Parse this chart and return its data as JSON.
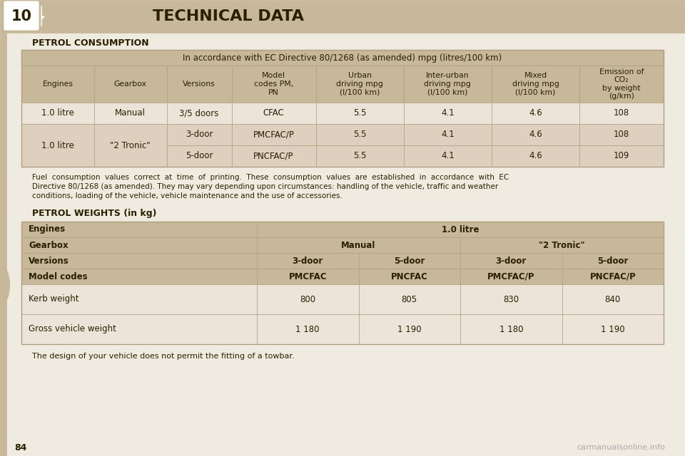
{
  "page_bg": "#f0ebe0",
  "header_bg": "#c8b89a",
  "header_number": "10",
  "header_title": "TECHNICAL DATA",
  "section1_title": "PETROL CONSUMPTION",
  "section2_title": "PETROL WEIGHTS (in kg)",
  "table1_header_text": "In accordance with EC Directive 80/1268 (as amended) mpg (litres/100 km)",
  "col_headers": [
    "Engines",
    "Gearbox",
    "Versions",
    "Model\ncodes PM,\nPN",
    "Urban\ndriving mpg\n(l/100 km)",
    "Inter-urban\ndriving mpg\n(l/100 km)",
    "Mixed\ndriving mpg\n(l/100 km)",
    "Emission of\nCO₂\nby weight\n(g/km)"
  ],
  "table1_data": [
    [
      "1.0 litre",
      "Manual",
      "3/5 doors",
      "CFAC",
      "5.5",
      "4.1",
      "4.6",
      "108"
    ],
    [
      "",
      "",
      "3-door",
      "PMCFAC/P",
      "5.5",
      "4.1",
      "4.6",
      "108"
    ],
    [
      "",
      "",
      "5-door",
      "PNCFAC/P",
      "5.5",
      "4.1",
      "4.6",
      "109"
    ]
  ],
  "merged_col0": "1.0 litre",
  "merged_col1": "\"2 Tronic\"",
  "footnote_lines": [
    "Fuel  consumption  values  correct  at  time  of  printing.  These  consumption  values  are  established  in  accordance  with  EC",
    "Directive 80/1268 (as amended). They may vary depending upon circumstances: handling of the vehicle, traffic and weather",
    "conditions, loading of the vehicle, vehicle maintenance and the use of accessories."
  ],
  "table2_row_labels": [
    "Engines",
    "Gearbox",
    "Versions",
    "Model codes",
    "Kerb weight",
    "Gross vehicle weight"
  ],
  "table2_header_flags": [
    true,
    true,
    true,
    true,
    false,
    false
  ],
  "table2_right": [
    [
      [
        "1.0 litre",
        4
      ]
    ],
    [
      [
        "Manual",
        2
      ],
      [
        "\"2 Tronic\"",
        2
      ]
    ],
    [
      [
        "3-door",
        1
      ],
      [
        "5-door",
        1
      ],
      [
        "3-door",
        1
      ],
      [
        "5-door",
        1
      ]
    ],
    [
      [
        "PMCFAC",
        1
      ],
      [
        "PNCFAC",
        1
      ],
      [
        "PMCFAC/P",
        1
      ],
      [
        "PNCFAC/P",
        1
      ]
    ],
    [
      [
        "800",
        1
      ],
      [
        "805",
        1
      ],
      [
        "830",
        1
      ],
      [
        "840",
        1
      ]
    ],
    [
      [
        "1 180",
        1
      ],
      [
        "1 190",
        1
      ],
      [
        "1 180",
        1
      ],
      [
        "1 190",
        1
      ]
    ]
  ],
  "footer_note": "The design of your vehicle does not permit the fitting of a towbar.",
  "page_number": "84",
  "watermark": "carmanualsonline.info",
  "dark_text": "#2a2000",
  "tan_bg": "#c8b89a",
  "cream_bg": "#ddd0be",
  "light_cell": "#ece4d8",
  "border_color": "#b0a080"
}
